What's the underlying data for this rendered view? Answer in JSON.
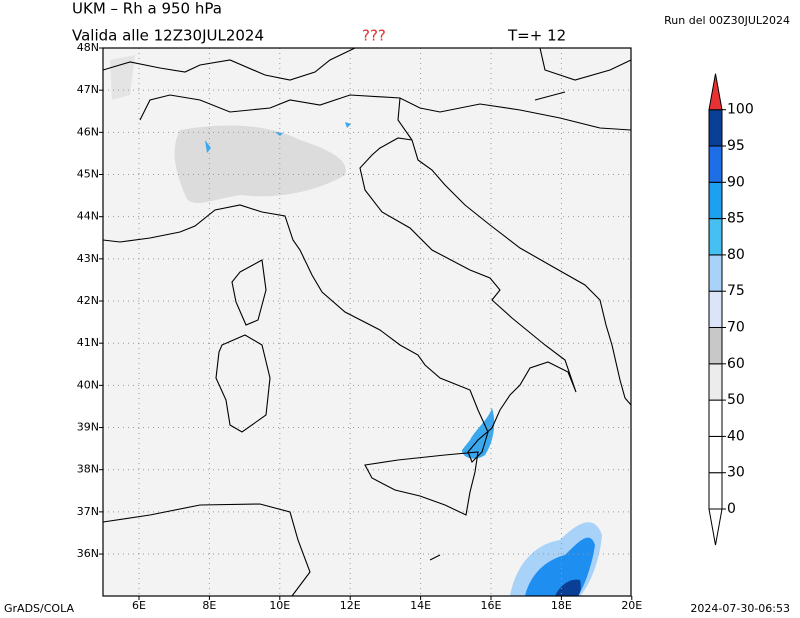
{
  "header": {
    "title": "UKM – Rh a 950 hPa",
    "valid": "Valida alle 12Z30JUL2024",
    "flag": "???",
    "step": "T=+ 12",
    "run": "Run del 00Z30JUL2024"
  },
  "map": {
    "lat_labels": [
      "48N",
      "47N",
      "46N",
      "45N",
      "44N",
      "43N",
      "42N",
      "41N",
      "40N",
      "39N",
      "38N",
      "37N",
      "36N"
    ],
    "lon_labels": [
      "6E",
      "8E",
      "10E",
      "12E",
      "14E",
      "16E",
      "18E",
      "20E"
    ]
  },
  "colorbar": {
    "levels": [
      0,
      30,
      40,
      50,
      60,
      70,
      75,
      80,
      85,
      90,
      95,
      100
    ],
    "colors": [
      "#ffffff",
      "#ffffff",
      "#ffffff",
      "#ffffff",
      "#ececec",
      "#c8c8c8",
      "#dce4fa",
      "#a8d2f8",
      "#46c0f2",
      "#1ea0f0",
      "#1e6ee6",
      "#0a3f96",
      "#e63232"
    ]
  },
  "footer": {
    "left": "GrADS/COLA",
    "right": "2024-07-30-06:53"
  }
}
